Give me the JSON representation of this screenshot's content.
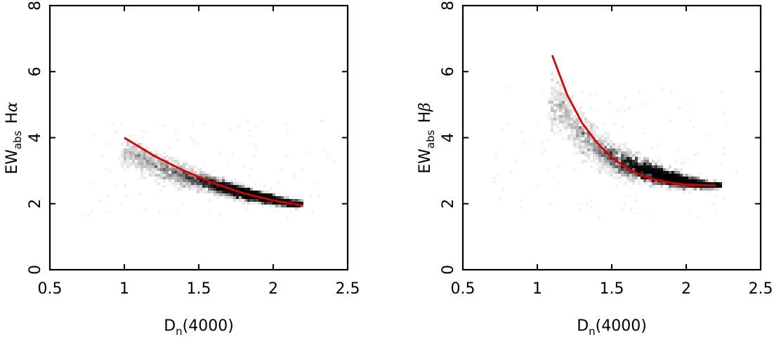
{
  "colors": {
    "fit": "#dd0000",
    "density": "#000000",
    "frame": "#000000"
  },
  "chart_data": [
    {
      "id": "halpha",
      "type": "scatter",
      "title": "",
      "xlabel_main": "D",
      "xlabel_sub": "n",
      "xlabel_tail": "(4000)",
      "ylabel_main": "EW",
      "ylabel_sub": "abs",
      "ylabel_line": "H",
      "ylabel_greek": "α",
      "xlim": [
        0.5,
        2.5
      ],
      "ylim": [
        0,
        8
      ],
      "x_ticks": [
        0.5,
        1,
        1.5,
        2,
        2.5
      ],
      "x_tick_labels": [
        "0.5",
        "1",
        "1.5",
        "2",
        "2.5"
      ],
      "y_ticks": [
        0,
        2,
        4,
        6,
        8
      ],
      "y_tick_labels": [
        "0",
        "2",
        "4",
        "6",
        "8"
      ],
      "grid": false,
      "density_ridge": [
        {
          "x": 1.05,
          "y": 3.55
        },
        {
          "x": 1.2,
          "y": 3.2
        },
        {
          "x": 1.4,
          "y": 2.85
        },
        {
          "x": 1.6,
          "y": 2.6
        },
        {
          "x": 1.8,
          "y": 2.35
        },
        {
          "x": 1.9,
          "y": 2.25
        },
        {
          "x": 2.1,
          "y": 2.05
        }
      ],
      "fit_curve": {
        "name": "",
        "x": [
          1.0,
          1.2,
          1.4,
          1.6,
          1.8,
          2.0,
          2.2
        ],
        "y": [
          4.0,
          3.45,
          3.0,
          2.62,
          2.32,
          2.1,
          1.95
        ]
      }
    },
    {
      "id": "hbeta",
      "type": "scatter",
      "title": "",
      "xlabel_main": "D",
      "xlabel_sub": "n",
      "xlabel_tail": "(4000)",
      "ylabel_main": "EW",
      "ylabel_sub": "abs",
      "ylabel_line": "H",
      "ylabel_greek": "β",
      "xlim": [
        0.5,
        2.5
      ],
      "ylim": [
        0,
        8
      ],
      "x_ticks": [
        0.5,
        1,
        1.5,
        2,
        2.5
      ],
      "x_tick_labels": [
        "0.5",
        "1",
        "1.5",
        "2",
        "2.5"
      ],
      "y_ticks": [
        0,
        2,
        4,
        6,
        8
      ],
      "y_tick_labels": [
        "0",
        "2",
        "4",
        "6",
        "8"
      ],
      "grid": false,
      "density_ridge": [
        {
          "x": 1.15,
          "y": 5.0
        },
        {
          "x": 1.25,
          "y": 4.3
        },
        {
          "x": 1.4,
          "y": 3.7
        },
        {
          "x": 1.55,
          "y": 3.3
        },
        {
          "x": 1.7,
          "y": 3.05
        },
        {
          "x": 1.85,
          "y": 2.85
        },
        {
          "x": 2.0,
          "y": 2.7
        },
        {
          "x": 2.15,
          "y": 2.6
        }
      ],
      "fit_curve": {
        "name": "",
        "x": [
          1.1,
          1.2,
          1.3,
          1.4,
          1.5,
          1.6,
          1.7,
          1.8,
          1.9,
          2.0,
          2.2
        ],
        "y": [
          6.5,
          5.3,
          4.45,
          3.85,
          3.4,
          3.08,
          2.86,
          2.72,
          2.63,
          2.58,
          2.55
        ]
      }
    }
  ]
}
